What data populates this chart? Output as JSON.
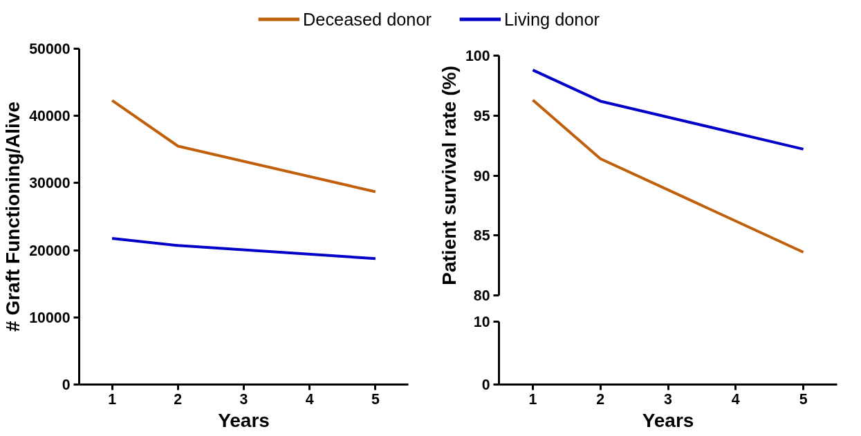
{
  "chart_data": [
    {
      "type": "line",
      "ylabel": "# Graft Functioning/Alive",
      "xlabel": "Years",
      "xlim": [
        0.5,
        5.5
      ],
      "xticks": [
        1,
        2,
        3,
        4,
        5
      ],
      "ylim": [
        0,
        50000
      ],
      "yticks": [
        0,
        10000,
        20000,
        30000,
        40000,
        50000
      ],
      "grid": false,
      "legend": "top",
      "series": [
        {
          "name": "Deceased donor",
          "color": "#c0600c",
          "x": [
            1,
            2,
            5
          ],
          "values": [
            42300,
            35500,
            28700
          ]
        },
        {
          "name": "Living donor",
          "color": "#0000c8",
          "x": [
            1,
            2,
            5
          ],
          "values": [
            21750,
            20700,
            18750
          ]
        }
      ]
    },
    {
      "type": "line",
      "ylabel": "Patient survival rate (%)",
      "xticks": [
        1,
        2,
        3,
        4,
        5
      ],
      "grid": false,
      "ylim": [
        80,
        100
      ],
      "yticks": [
        80,
        85,
        90,
        95,
        100
      ],
      "tick_labels": "y",
      "series": [
        {
          "color": "#c0600c",
          "x": [
            1,
            2,
            5
          ],
          "values": [
            96.3,
            91.4,
            83.6
          ]
        },
        {
          "color": "#0000c8",
          "x": [
            1,
            2,
            5
          ],
          "values": [
            98.8,
            96.2,
            92.2
          ]
        }
      ]
    },
    {
      "type": "line",
      "xlabel": "Years",
      "xlim": [
        0.5,
        5.5
      ],
      "xticks": [
        1,
        2,
        3,
        4,
        5
      ],
      "ylim": [
        0,
        10
      ],
      "yticks": [
        0,
        10
      ],
      "grid": false
    }
  ]
}
